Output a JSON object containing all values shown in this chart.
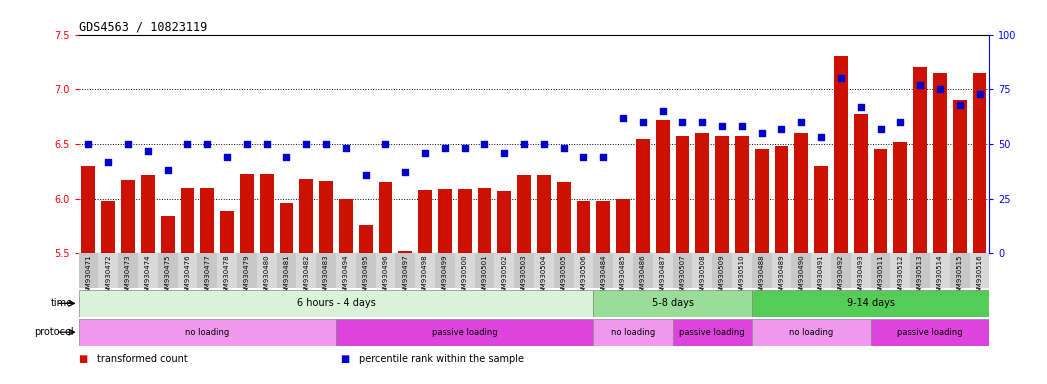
{
  "title": "GDS4563 / 10823119",
  "ylim_left": [
    5.5,
    7.5
  ],
  "ylim_right": [
    0,
    100
  ],
  "yticks_left": [
    5.5,
    6.0,
    6.5,
    7.0,
    7.5
  ],
  "yticks_right": [
    0,
    25,
    50,
    75,
    100
  ],
  "bar_color": "#cc1100",
  "dot_color": "#0000cc",
  "categories": [
    "GSM930471",
    "GSM930472",
    "GSM930473",
    "GSM930474",
    "GSM930475",
    "GSM930476",
    "GSM930477",
    "GSM930478",
    "GSM930479",
    "GSM930480",
    "GSM930481",
    "GSM930482",
    "GSM930483",
    "GSM930494",
    "GSM930495",
    "GSM930496",
    "GSM930497",
    "GSM930498",
    "GSM930499",
    "GSM930500",
    "GSM930501",
    "GSM930502",
    "GSM930503",
    "GSM930504",
    "GSM930505",
    "GSM930506",
    "GSM930484",
    "GSM930485",
    "GSM930486",
    "GSM930487",
    "GSM930507",
    "GSM930508",
    "GSM930509",
    "GSM930510",
    "GSM930488",
    "GSM930489",
    "GSM930490",
    "GSM930491",
    "GSM930492",
    "GSM930493",
    "GSM930511",
    "GSM930512",
    "GSM930513",
    "GSM930514",
    "GSM930515",
    "GSM930516"
  ],
  "bar_values": [
    6.3,
    5.98,
    6.17,
    6.22,
    5.84,
    6.1,
    6.1,
    5.89,
    6.23,
    6.23,
    5.96,
    6.18,
    6.16,
    6.0,
    5.76,
    6.15,
    5.52,
    6.08,
    6.09,
    6.09,
    6.1,
    6.07,
    6.22,
    6.22,
    6.15,
    5.98,
    5.98,
    6.0,
    6.55,
    6.72,
    6.57,
    6.6,
    6.57,
    6.57,
    6.45,
    6.48,
    6.6,
    6.3,
    7.3,
    6.77,
    6.45,
    6.52,
    7.2,
    7.15,
    6.9,
    7.15
  ],
  "dot_values": [
    50,
    42,
    50,
    47,
    38,
    50,
    50,
    44,
    50,
    50,
    44,
    50,
    50,
    48,
    36,
    50,
    37,
    46,
    48,
    48,
    50,
    46,
    50,
    50,
    48,
    44,
    44,
    62,
    60,
    65,
    60,
    60,
    58,
    58,
    55,
    57,
    60,
    53,
    80,
    67,
    57,
    60,
    77,
    75,
    68,
    73
  ],
  "time_groups": [
    {
      "label": "6 hours - 4 days",
      "start": 0,
      "end": 26,
      "color": "#d9f2d9"
    },
    {
      "label": "5-8 days",
      "start": 26,
      "end": 34,
      "color": "#99dd99"
    },
    {
      "label": "9-14 days",
      "start": 34,
      "end": 46,
      "color": "#55cc55"
    }
  ],
  "protocol_groups": [
    {
      "label": "no loading",
      "start": 0,
      "end": 13,
      "color": "#ee99ee"
    },
    {
      "label": "passive loading",
      "start": 13,
      "end": 26,
      "color": "#dd44dd"
    },
    {
      "label": "no loading",
      "start": 26,
      "end": 30,
      "color": "#ee99ee"
    },
    {
      "label": "passive loading",
      "start": 30,
      "end": 34,
      "color": "#dd44dd"
    },
    {
      "label": "no loading",
      "start": 34,
      "end": 40,
      "color": "#ee99ee"
    },
    {
      "label": "passive loading",
      "start": 40,
      "end": 46,
      "color": "#dd44dd"
    }
  ],
  "legend_items": [
    {
      "label": "transformed count",
      "color": "#cc1100"
    },
    {
      "label": "percentile rank within the sample",
      "color": "#0000cc"
    }
  ],
  "dotted_lines": [
    6.0,
    6.5,
    7.0
  ]
}
